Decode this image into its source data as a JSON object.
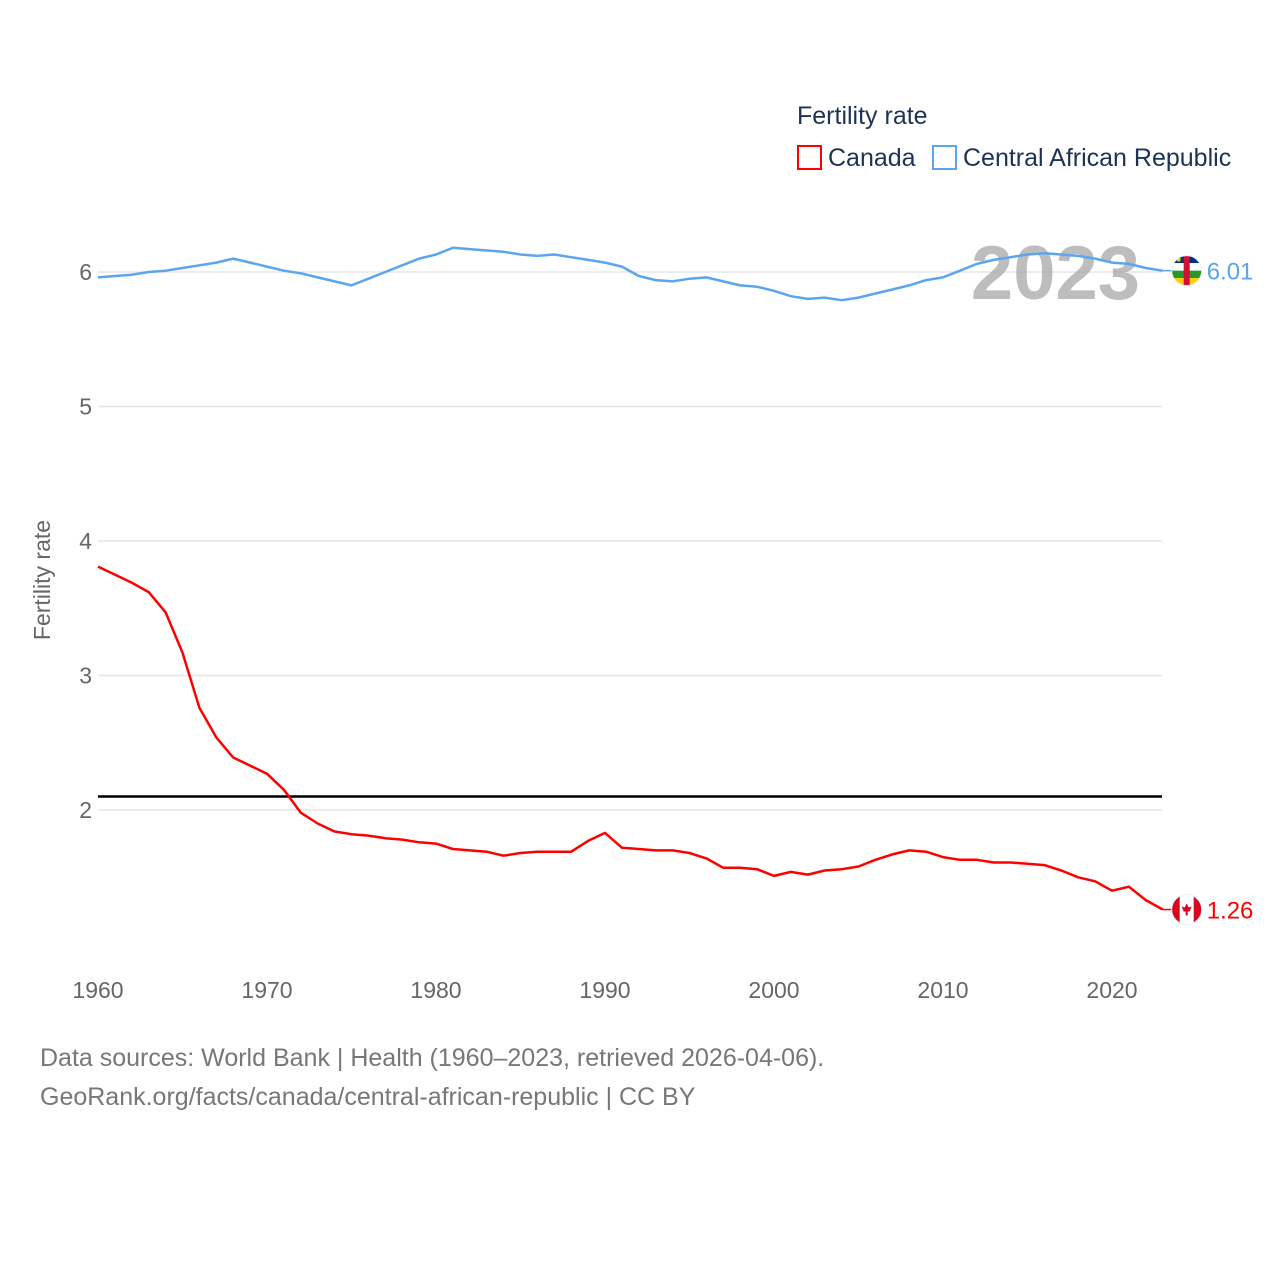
{
  "chart_data": {
    "type": "line",
    "title": "",
    "xlabel": "",
    "ylabel": "Fertility rate",
    "xlim": [
      1960,
      2023
    ],
    "ylim": [
      0.85,
      6.5
    ],
    "x_ticks": [
      "1960",
      "1970",
      "1980",
      "1990",
      "2000",
      "2010",
      "2020"
    ],
    "y_ticks": [
      "2",
      "3",
      "4",
      "5",
      "6"
    ],
    "grid": "horizontal",
    "legend": {
      "title": "Fertility rate",
      "placement": "top-right"
    },
    "year_label": "2023",
    "reference_line": {
      "value": 2.1,
      "color": "#000000"
    },
    "x": [
      1960,
      1961,
      1962,
      1963,
      1964,
      1965,
      1966,
      1967,
      1968,
      1969,
      1970,
      1971,
      1972,
      1973,
      1974,
      1975,
      1976,
      1977,
      1978,
      1979,
      1980,
      1981,
      1982,
      1983,
      1984,
      1985,
      1986,
      1987,
      1988,
      1989,
      1990,
      1991,
      1992,
      1993,
      1994,
      1995,
      1996,
      1997,
      1998,
      1999,
      2000,
      2001,
      2002,
      2003,
      2004,
      2005,
      2006,
      2007,
      2008,
      2009,
      2010,
      2011,
      2012,
      2013,
      2014,
      2015,
      2016,
      2017,
      2018,
      2019,
      2020,
      2021,
      2022,
      2023
    ],
    "series": [
      {
        "name": "Canada",
        "color": "#ff0000",
        "end_label": "1.26",
        "flag": "canada-flag-icon",
        "values": [
          3.81,
          3.75,
          3.69,
          3.62,
          3.47,
          3.17,
          2.76,
          2.54,
          2.39,
          2.33,
          2.27,
          2.15,
          1.98,
          1.9,
          1.84,
          1.82,
          1.81,
          1.79,
          1.78,
          1.76,
          1.75,
          1.71,
          1.7,
          1.69,
          1.66,
          1.68,
          1.69,
          1.69,
          1.69,
          1.77,
          1.83,
          1.72,
          1.71,
          1.7,
          1.7,
          1.68,
          1.64,
          1.57,
          1.57,
          1.56,
          1.51,
          1.54,
          1.52,
          1.55,
          1.56,
          1.58,
          1.63,
          1.67,
          1.7,
          1.69,
          1.65,
          1.63,
          1.63,
          1.61,
          1.61,
          1.6,
          1.59,
          1.55,
          1.5,
          1.47,
          1.4,
          1.43,
          1.33,
          1.26
        ]
      },
      {
        "name": "Central African Republic",
        "color": "#5aa5ee",
        "end_label": "6.01",
        "flag": "central-african-republic-flag-icon",
        "values": [
          5.96,
          5.97,
          5.98,
          6.0,
          6.01,
          6.03,
          6.05,
          6.07,
          6.1,
          6.07,
          6.04,
          6.01,
          5.99,
          5.96,
          5.93,
          5.9,
          5.95,
          6.0,
          6.05,
          6.1,
          6.13,
          6.18,
          6.17,
          6.16,
          6.15,
          6.13,
          6.12,
          6.13,
          6.11,
          6.09,
          6.07,
          6.04,
          5.97,
          5.94,
          5.93,
          5.95,
          5.96,
          5.93,
          5.9,
          5.89,
          5.86,
          5.82,
          5.8,
          5.81,
          5.79,
          5.81,
          5.84,
          5.87,
          5.9,
          5.94,
          5.96,
          6.01,
          6.06,
          6.09,
          6.11,
          6.13,
          6.14,
          6.13,
          6.12,
          6.1,
          6.07,
          6.06,
          6.03,
          6.01
        ]
      }
    ]
  },
  "footer": {
    "sources": "Data sources: World Bank | Health (1960–2023, retrieved 2026-04-06).",
    "url": "GeoRank.org/facts/canada/central-african-republic | CC BY"
  }
}
